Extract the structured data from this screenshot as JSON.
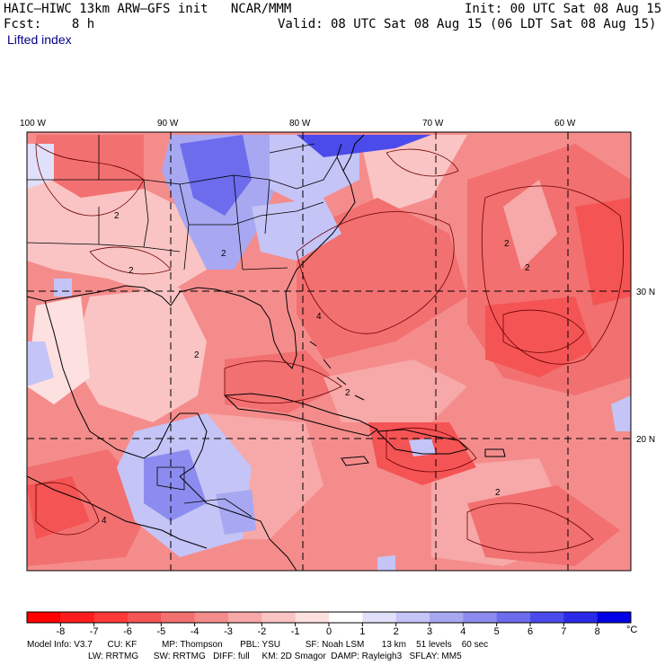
{
  "header": {
    "title_left": "HAIC–HIWC 13km ARW–GFS init   NCAR/MMM",
    "init": "Init: 00 UTC Sat 08 Aug 15",
    "fcst": "Fcst:    8 h",
    "valid": "Valid: 08 UTC Sat 08 Aug 15 (06 LDT Sat 08 Aug 15)",
    "field": "Lifted index"
  },
  "map": {
    "lon_labels": [
      "100 W",
      "90 W",
      "80 W",
      "70 W",
      "60 W"
    ],
    "lat_labels": [
      "30 N",
      "20 N"
    ],
    "contour_labels": [
      "2",
      "2",
      "2",
      "2",
      "2",
      "2",
      "2",
      "2",
      "4",
      "4"
    ],
    "colors": {
      "warm": "#ef6e6e",
      "cool": "#3a3adb",
      "land_line": "#000000"
    }
  },
  "legend": {
    "ticks": [
      "-8",
      "-7",
      "-6",
      "-5",
      "-4",
      "-3",
      "-2",
      "-1",
      "0",
      "1",
      "2",
      "3",
      "4",
      "5",
      "6",
      "7",
      "8"
    ],
    "unit": "°C",
    "colors": [
      "#ff0000",
      "#ff1c1c",
      "#ff3838",
      "#f55454",
      "#f27070",
      "#f58c8c",
      "#f7a8a8",
      "#fac4c4",
      "#fde0e0",
      "#ffffff",
      "#e0e0fa",
      "#c4c4f7",
      "#a8a8f2",
      "#8c8cf0",
      "#6c6ced",
      "#4b4beb",
      "#2a2ae8",
      "#0000e6"
    ]
  },
  "footer": {
    "line1": "Model Info: V3.7      CU: KF          MP: Thompson       PBL: YSU          SF: Noah LSM       13 km    51 levels    60 sec",
    "line2": "LW: RRTMG      SW: RRTMG   DIFF: full     KM: 2D Smagor  DAMP: Rayleigh3   SFLAY: MM5"
  }
}
